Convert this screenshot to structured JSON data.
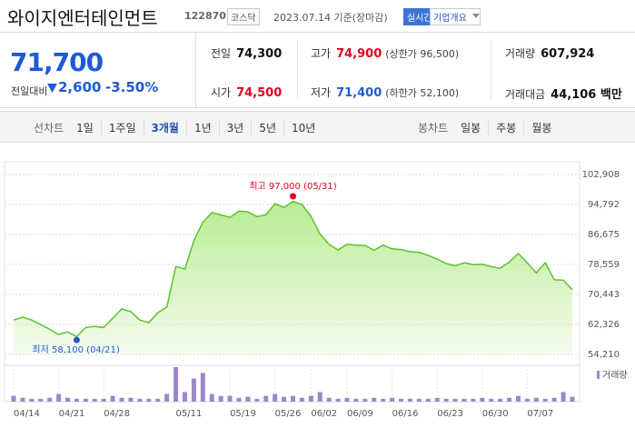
{
  "header": {
    "name": "와이지엔터테인먼트",
    "code": "122870",
    "market": "코스닥",
    "date": "2023.07.14 기준(장마감)",
    "realtime": "실시간",
    "company_info": "기업개요"
  },
  "price": {
    "current": "71,700",
    "change_label": "전일대비",
    "change": "2,600",
    "change_rate": "-3.50%",
    "color": "#1d5bd6"
  },
  "quote": [
    {
      "label": "전일",
      "value": "74,300",
      "color": "#111111"
    },
    {
      "label": "고가",
      "value": "74,900",
      "note": "(상한가 96,500)",
      "color": "#e3001b"
    },
    {
      "label": "거래량",
      "value": "607,924",
      "color": "#111111"
    },
    {
      "label": "시가",
      "value": "74,500",
      "color": "#e3001b"
    },
    {
      "label": "저가",
      "value": "71,400",
      "note": "(하한가 52,100)",
      "color": "#1d5bd6"
    },
    {
      "label": "거래대금",
      "value": "44,106 백만",
      "color": "#111111"
    }
  ],
  "tabs": {
    "line_label": "선차트",
    "line": [
      "1일",
      "1주일",
      "3개월",
      "1년",
      "3년",
      "5년",
      "10년"
    ],
    "selected": 2,
    "candle_label": "봉차트",
    "candle": [
      "일봉",
      "주봉",
      "월봉"
    ]
  },
  "chart_data": {
    "type": "line",
    "categories": [
      "04/14",
      null,
      null,
      null,
      null,
      "04/21",
      null,
      null,
      null,
      null,
      "04/28",
      null,
      null,
      null,
      null,
      null,
      null,
      null,
      "05/11",
      null,
      null,
      null,
      null,
      null,
      "05/19",
      null,
      null,
      null,
      null,
      "05/26",
      null,
      null,
      null,
      "06/02",
      null,
      null,
      null,
      "06/09",
      null,
      null,
      null,
      null,
      "06/16",
      null,
      null,
      null,
      null,
      "06/23",
      null,
      null,
      null,
      null,
      "06/30",
      null,
      null,
      null,
      null,
      "07/07",
      null,
      null,
      null,
      null,
      null
    ],
    "values": [
      63500,
      64300,
      63500,
      62300,
      61000,
      59600,
      60300,
      59000,
      61500,
      61800,
      61500,
      64000,
      66500,
      65800,
      63500,
      62800,
      65500,
      67000,
      78000,
      77300,
      85000,
      90000,
      92600,
      92000,
      91300,
      93000,
      92800,
      91500,
      92000,
      95000,
      94000,
      95600,
      94800,
      91600,
      86800,
      84000,
      82500,
      84000,
      83800,
      83700,
      82400,
      83800,
      82800,
      82600,
      82000,
      81800,
      81000,
      80000,
      78800,
      78200,
      79000,
      78500,
      78600,
      78000,
      77500,
      79200,
      81500,
      79000,
      76300,
      79000,
      74400,
      74300,
      71700
    ],
    "color": "#5cc22d",
    "fill": "#b9ec92",
    "ylim": [
      54210,
      102908
    ],
    "yticks": [
      {
        "value": 54210,
        "label": "54,210"
      },
      {
        "value": 62326,
        "label": "62,326"
      },
      {
        "value": 70443,
        "label": "70,443"
      },
      {
        "value": 78559,
        "label": "78,559"
      },
      {
        "value": 86675,
        "label": "86,675"
      },
      {
        "value": 94792,
        "label": "94,792"
      },
      {
        "value": 102908,
        "label": "102,908"
      }
    ],
    "grid": true,
    "high": 97000,
    "high_label": "최고 97,000 (05/31)",
    "high_color": "#e3001b",
    "low": 58100,
    "low_label": "최저 58,100 (04/21)",
    "low_color": "#1d5bd6",
    "volume": {
      "name": "거래량",
      "color": "#9b87cc",
      "values": [
        720000,
        480000,
        360000,
        360000,
        480000,
        960000,
        480000,
        360000,
        360000,
        360000,
        360000,
        720000,
        480000,
        480000,
        360000,
        360000,
        360000,
        960000,
        4320000,
        1200000,
        2880000,
        3600000,
        960000,
        720000,
        720000,
        480000,
        600000,
        360000,
        720000,
        960000,
        600000,
        720000,
        480000,
        720000,
        1200000,
        480000,
        360000,
        480000,
        360000,
        360000,
        480000,
        360000,
        480000,
        360000,
        360000,
        360000,
        360000,
        480000,
        360000,
        360000,
        360000,
        360000,
        480000,
        360000,
        360000,
        480000,
        720000,
        360000,
        480000,
        360000,
        480000,
        1200000,
        607924
      ]
    }
  }
}
